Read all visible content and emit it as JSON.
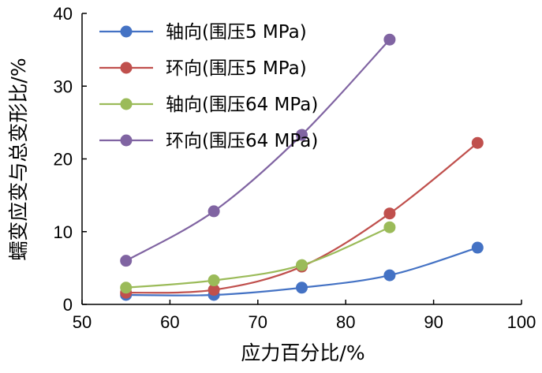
{
  "chart_data": {
    "type": "line",
    "xlabel": "应力百分比/%",
    "ylabel": "蠕变应变与总变形比/%",
    "xlim": [
      50,
      100
    ],
    "ylim": [
      0,
      40
    ],
    "x_ticks": [
      "50",
      "60",
      "70",
      "80",
      "90",
      "100"
    ],
    "y_ticks": [
      "0",
      "10",
      "20",
      "30",
      "40"
    ],
    "grid": false,
    "legend_position": "top-left",
    "series": [
      {
        "name": "轴向(围压5 MPa)",
        "color": "#4472c4",
        "x": [
          55,
          65,
          75,
          85,
          95
        ],
        "y": [
          1.3,
          1.3,
          2.3,
          4.0,
          7.8
        ]
      },
      {
        "name": "环向(围压5 MPa)",
        "color": "#c0504d",
        "x": [
          55,
          65,
          75,
          85,
          95
        ],
        "y": [
          1.6,
          2.0,
          5.2,
          12.5,
          22.2
        ]
      },
      {
        "name": "轴向(围压64 MPa)",
        "color": "#9bbb59",
        "x": [
          55,
          65,
          75,
          85
        ],
        "y": [
          2.3,
          3.3,
          5.4,
          10.6
        ]
      },
      {
        "name": "环向(围压64 MPa)",
        "color": "#8064a2",
        "x": [
          55,
          65,
          75,
          85
        ],
        "y": [
          6.0,
          12.8,
          23.3,
          36.4
        ]
      }
    ]
  }
}
